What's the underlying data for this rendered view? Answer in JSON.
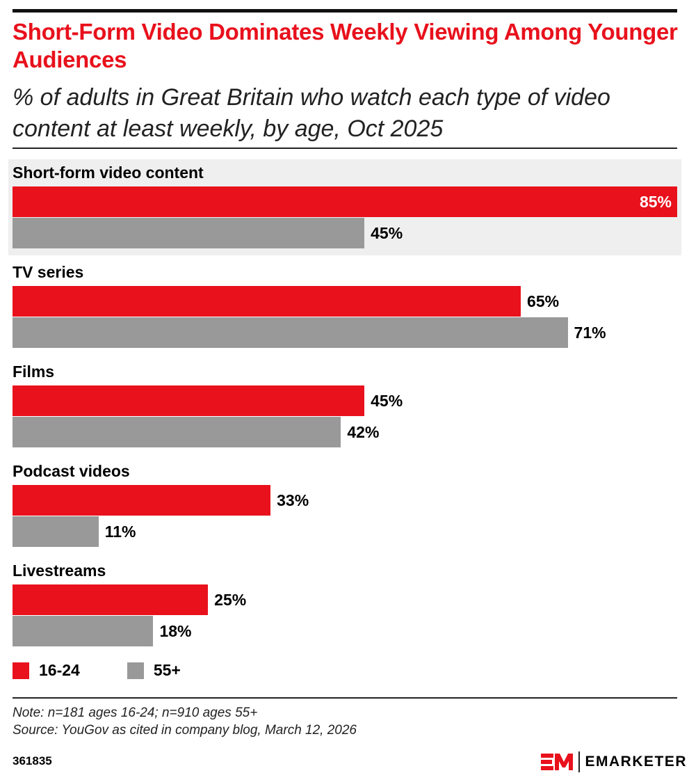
{
  "header": {
    "title": "Short-Form Video Dominates Weekly Viewing Among Younger Audiences",
    "subtitle": "% of adults in Great Britain who watch each type of video content at least weekly, by age, Oct 2025"
  },
  "chart_data": {
    "type": "bar",
    "orientation": "horizontal",
    "title": "Short-Form Video Dominates Weekly Viewing Among Younger Audiences",
    "subtitle": "% of adults in Great Britain who watch each type of video content at least weekly, by age, Oct 2025",
    "categories": [
      "Short-form video content",
      "TV series",
      "Films",
      "Podcast videos",
      "Livestreams"
    ],
    "series": [
      {
        "name": "16-24",
        "color": "#e8111c",
        "values": [
          85,
          65,
          45,
          33,
          25
        ],
        "labels": [
          "85%",
          "65%",
          "45%",
          "33%",
          "25%"
        ]
      },
      {
        "name": "55+",
        "color": "#999999",
        "values": [
          45,
          71,
          42,
          11,
          18
        ],
        "labels": [
          "45%",
          "71%",
          "42%",
          "11%",
          "18%"
        ]
      }
    ],
    "highlighted_category": "Short-form video content",
    "highlight_color": "#efefef",
    "xlim": [
      0,
      85
    ],
    "grid": false,
    "legend": "bottom-left"
  },
  "footer": {
    "note": "Note: n=181 ages 16-24; n=910 ages 55+",
    "source": "Source: YouGov as cited in company blog, March 12, 2026",
    "id": "361835",
    "brand": "EMARKETER",
    "brand_color": "#e8111c"
  }
}
